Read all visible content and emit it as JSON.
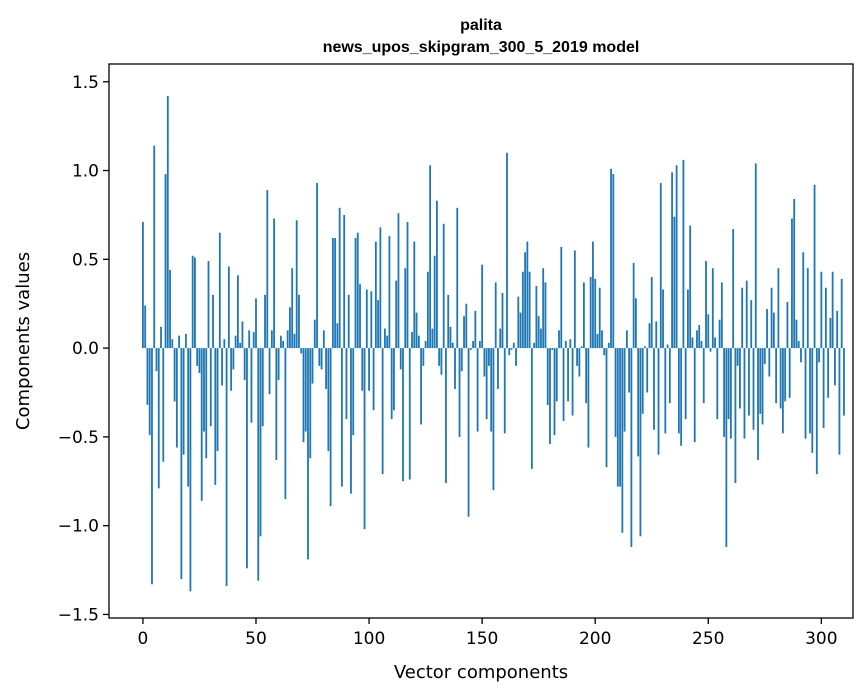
{
  "chart_data": {
    "type": "bar",
    "title_line1": "palita",
    "title_line2": "news_upos_skipgram_300_5_2019 model",
    "xlabel": "Vector components",
    "ylabel": "Components values",
    "xlim": [
      -15,
      314
    ],
    "ylim": [
      -1.52,
      1.6
    ],
    "xticks": [
      0,
      50,
      100,
      150,
      200,
      250,
      300
    ],
    "xtick_labels": [
      "0",
      "50",
      "100",
      "150",
      "200",
      "250",
      "300"
    ],
    "yticks": [
      -1.5,
      -1.0,
      -0.5,
      0.0,
      0.5,
      1.0,
      1.5
    ],
    "ytick_labels": [
      "−1.5",
      "−1.0",
      "−0.5",
      "0.0",
      "0.5",
      "1.0",
      "1.5"
    ],
    "bar_color": "#1f77b4",
    "values": [
      0.71,
      0.24,
      -0.32,
      -0.49,
      -1.33,
      1.14,
      -0.13,
      -0.79,
      0.12,
      -0.64,
      0.98,
      1.42,
      0.44,
      0.05,
      -0.3,
      -0.56,
      0.07,
      -1.3,
      -0.6,
      0.08,
      -0.78,
      -1.37,
      0.52,
      0.51,
      -0.1,
      -0.14,
      -0.86,
      -0.47,
      -0.62,
      0.49,
      -0.44,
      0.3,
      -0.77,
      -0.58,
      0.65,
      -0.21,
      0.05,
      -1.34,
      0.46,
      -0.24,
      -0.12,
      0.07,
      0.41,
      0.03,
      0.15,
      -0.18,
      -1.24,
      0.1,
      -0.42,
      0.09,
      0.28,
      -1.31,
      -1.06,
      -0.44,
      0.3,
      0.89,
      -0.26,
      0.1,
      0.73,
      -0.63,
      -0.18,
      0.07,
      0.04,
      -0.85,
      0.1,
      0.23,
      0.45,
      0.08,
      0.72,
      0.3,
      -0.03,
      -0.53,
      -0.47,
      -1.19,
      -0.62,
      -0.2,
      0.16,
      0.93,
      -0.1,
      -0.12,
      0.1,
      -0.23,
      -0.58,
      -0.89,
      0.62,
      0.62,
      0.14,
      0.79,
      -0.78,
      0.75,
      -0.4,
      0.3,
      -0.82,
      -0.49,
      0.62,
      0.65,
      0.36,
      -0.24,
      -1.02,
      0.33,
      -0.24,
      0.32,
      -0.35,
      0.6,
      0.27,
      0.68,
      -0.71,
      0.11,
      0.07,
      0.63,
      -0.4,
      -0.35,
      0.38,
      0.76,
      -0.12,
      -0.75,
      0.45,
      0.71,
      -0.74,
      0.09,
      0.6,
      0.2,
      0.07,
      -0.43,
      -0.1,
      0.04,
      0.43,
      1.03,
      0.11,
      0.52,
      0.83,
      -0.1,
      -0.15,
      0.7,
      -0.76,
      0.3,
      0.12,
      0.03,
      -0.23,
      0.79,
      -0.5,
      -0.13,
      0.18,
      0.25,
      -0.95,
      -0.01,
      0.04,
      0.21,
      -0.47,
      0.04,
      0.47,
      -0.16,
      -0.4,
      -0.1,
      -0.47,
      -0.8,
      0.37,
      -0.23,
      0.11,
      0.31,
      -0.48,
      1.1,
      -0.04,
      -0.01,
      0.03,
      -0.1,
      0.29,
      0.2,
      0.43,
      0.54,
      0.6,
      0.43,
      -0.68,
      0.03,
      0.35,
      0.18,
      0.11,
      0.45,
      0.37,
      -0.32,
      -0.54,
      -0.01,
      -0.49,
      -0.3,
      0.1,
      0.57,
      -0.41,
      0.04,
      -0.3,
      0.05,
      -0.38,
      0.55,
      -0.1,
      -0.16,
      0.01,
      0.37,
      -0.31,
      -0.56,
      0.4,
      0.6,
      0.39,
      0.08,
      0.34,
      0.1,
      -0.04,
      -0.67,
      0.03,
      1.01,
      0.98,
      -0.5,
      -0.78,
      -0.78,
      -1.04,
      -0.47,
      0.1,
      -0.25,
      -1.12,
      0.48,
      0.28,
      -0.61,
      -1.06,
      -0.37,
      0.01,
      -0.25,
      0.14,
      0.4,
      -0.46,
      0.15,
      -0.6,
      0.93,
      0.33,
      -0.48,
      0.02,
      -0.31,
      0.99,
      0.74,
      1.03,
      -0.48,
      -0.55,
      1.06,
      -0.4,
      0.33,
      0.69,
      0.06,
      -0.53,
      0.1,
      0.13,
      0.04,
      -0.31,
      0.49,
      0.19,
      -0.02,
      0.45,
      0.06,
      -0.4,
      0.16,
      0.37,
      -0.5,
      -1.12,
      -0.4,
      -0.51,
      0.67,
      -0.76,
      -0.1,
      -0.34,
      0.34,
      -0.51,
      0.38,
      -0.38,
      0.27,
      -0.46,
      1.04,
      -0.63,
      -0.37,
      -0.43,
      -0.09,
      0.22,
      -0.16,
      0.34,
      0.2,
      -0.31,
      0.45,
      -0.34,
      -0.48,
      -0.3,
      0.26,
      -0.28,
      0.73,
      0.84,
      0.16,
      0.04,
      -0.08,
      0.54,
      -0.51,
      0.45,
      -0.48,
      -0.59,
      0.92,
      -0.71,
      -0.08,
      0.43,
      -0.45,
      0.34,
      -0.28,
      0.17,
      0.43,
      -0.21,
      0.21,
      -0.6,
      0.39,
      -0.38
    ]
  }
}
